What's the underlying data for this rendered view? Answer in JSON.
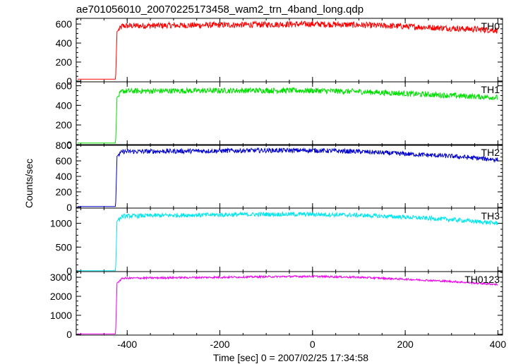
{
  "chart_data": {
    "type": "line",
    "title": "ae701056010_20070225173458_wam2_trn_4band_long.qdp",
    "xlabel": "Time [sec] 0 = 2007/02/25 17:34:58",
    "ylabel": "Counts/sec",
    "xlim": [
      -510,
      410
    ],
    "xticks": [
      -400,
      -200,
      0,
      200,
      400
    ],
    "grid": false,
    "panels": [
      {
        "name": "TH0",
        "color": "#ff0000",
        "ylim": [
          -8,
          660
        ],
        "yticks": [
          0,
          200,
          400,
          600
        ],
        "start_x": -420,
        "pre_level": 20,
        "level_start": 580,
        "level_mid": 600,
        "level_end": 535,
        "noise": 32,
        "points": [
          [
            -510,
            20
          ],
          [
            -425,
            20
          ],
          [
            -422,
            520
          ],
          [
            -410,
            580
          ],
          [
            -300,
            585
          ],
          [
            -200,
            590
          ],
          [
            -100,
            595
          ],
          [
            0,
            600
          ],
          [
            100,
            590
          ],
          [
            200,
            575
          ],
          [
            300,
            555
          ],
          [
            400,
            535
          ]
        ]
      },
      {
        "name": "TH1",
        "color": "#00e000",
        "ylim": [
          -8,
          640
        ],
        "yticks": [
          0,
          200,
          400,
          600
        ],
        "start_x": -420,
        "pre_level": 15,
        "level_start": 545,
        "level_mid": 550,
        "level_end": 480,
        "noise": 28,
        "points": [
          [
            -510,
            15
          ],
          [
            -425,
            15
          ],
          [
            -422,
            480
          ],
          [
            -410,
            545
          ],
          [
            -300,
            548
          ],
          [
            -200,
            550
          ],
          [
            -100,
            552
          ],
          [
            0,
            550
          ],
          [
            100,
            540
          ],
          [
            200,
            520
          ],
          [
            300,
            500
          ],
          [
            400,
            480
          ]
        ]
      },
      {
        "name": "TH2",
        "color": "#0000cc",
        "ylim": [
          -10,
          810
        ],
        "yticks": [
          0,
          200,
          400,
          600,
          800
        ],
        "start_x": -420,
        "pre_level": 10,
        "level_start": 720,
        "level_mid": 735,
        "level_end": 615,
        "noise": 30,
        "points": [
          [
            -510,
            10
          ],
          [
            -425,
            10
          ],
          [
            -422,
            660
          ],
          [
            -410,
            720
          ],
          [
            -300,
            725
          ],
          [
            -200,
            730
          ],
          [
            -100,
            735
          ],
          [
            0,
            735
          ],
          [
            100,
            720
          ],
          [
            200,
            690
          ],
          [
            300,
            660
          ],
          [
            400,
            615
          ]
        ]
      },
      {
        "name": "TH3",
        "color": "#00e5ee",
        "ylim": [
          -15,
          1320
        ],
        "yticks": [
          0,
          500,
          1000
        ],
        "start_x": -420,
        "pre_level": 5,
        "level_start": 1150,
        "level_mid": 1190,
        "level_end": 1000,
        "noise": 45,
        "points": [
          [
            -510,
            5
          ],
          [
            -425,
            5
          ],
          [
            -422,
            1050
          ],
          [
            -410,
            1150
          ],
          [
            -300,
            1170
          ],
          [
            -200,
            1180
          ],
          [
            -100,
            1190
          ],
          [
            0,
            1190
          ],
          [
            100,
            1170
          ],
          [
            200,
            1130
          ],
          [
            300,
            1080
          ],
          [
            400,
            1000
          ]
        ]
      },
      {
        "name": "TH0123",
        "color": "#ee00ee",
        "ylim": [
          -40,
          3300
        ],
        "yticks": [
          0,
          1000,
          2000,
          3000
        ],
        "start_x": -420,
        "pre_level": 20,
        "level_start": 2950,
        "level_mid": 3050,
        "level_end": 2620,
        "noise": 50,
        "points": [
          [
            -510,
            20
          ],
          [
            -425,
            20
          ],
          [
            -422,
            2700
          ],
          [
            -410,
            2950
          ],
          [
            -300,
            2980
          ],
          [
            -200,
            3000
          ],
          [
            -100,
            3030
          ],
          [
            0,
            3050
          ],
          [
            100,
            3000
          ],
          [
            200,
            2900
          ],
          [
            300,
            2780
          ],
          [
            400,
            2620
          ]
        ]
      }
    ]
  }
}
